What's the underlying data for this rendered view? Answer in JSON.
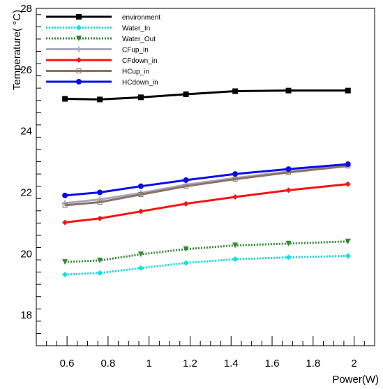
{
  "chart_data": {
    "type": "line",
    "xlabel": "Power(W)",
    "ylabel": "Temperature( °C)",
    "xlim": [
      0.45,
      2.1
    ],
    "ylim": [
      17,
      28
    ],
    "xticks": [
      0.6,
      0.8,
      1,
      1.2,
      1.4,
      1.6,
      1.8,
      2
    ],
    "xtick_labels": [
      "0.6",
      "0.8",
      "1",
      "1.2",
      "1.4",
      "1.6",
      "1.8",
      "2"
    ],
    "yticks": [
      18,
      20,
      22,
      24,
      26,
      28
    ],
    "ytick_labels": [
      "18",
      "20",
      "22",
      "24",
      "26",
      "28"
    ],
    "legend_position": "top-left",
    "grid": false,
    "x": [
      0.59,
      0.76,
      0.96,
      1.18,
      1.42,
      1.68,
      1.97
    ],
    "series": [
      {
        "name": "environment",
        "color": "#000000",
        "dash": "solid",
        "marker": "square",
        "values": [
          25.05,
          25.03,
          25.1,
          25.2,
          25.3,
          25.32,
          25.32
        ]
      },
      {
        "name": "Water_In",
        "color": "#00e5e5",
        "dash": "dotted",
        "marker": "diamond",
        "values": [
          19.32,
          19.37,
          19.53,
          19.7,
          19.82,
          19.88,
          19.93
        ]
      },
      {
        "name": "Water_Out",
        "color": "#2e8b2e",
        "dash": "dotted",
        "marker": "triangle-down",
        "values": [
          19.73,
          19.78,
          19.98,
          20.15,
          20.27,
          20.33,
          20.4
        ]
      },
      {
        "name": "CFup_in",
        "color": "#a8a8c0",
        "dash": "solid",
        "marker": "cross",
        "values": [
          21.65,
          21.77,
          21.98,
          22.25,
          22.47,
          22.68,
          22.88
        ]
      },
      {
        "name": "CFdown_in",
        "color": "#ff1010",
        "dash": "solid",
        "marker": "diamond",
        "values": [
          21.02,
          21.15,
          21.38,
          21.63,
          21.85,
          22.07,
          22.27
        ]
      },
      {
        "name": "HCup_in",
        "color": "#8b7262",
        "dash": "solid",
        "marker": "square-open",
        "values": [
          21.58,
          21.68,
          21.93,
          22.2,
          22.43,
          22.65,
          22.86
        ]
      },
      {
        "name": "HCdown_in",
        "color": "#0a0aee",
        "dash": "solid",
        "marker": "circle",
        "values": [
          21.9,
          22.0,
          22.2,
          22.4,
          22.6,
          22.76,
          22.92
        ]
      }
    ]
  }
}
